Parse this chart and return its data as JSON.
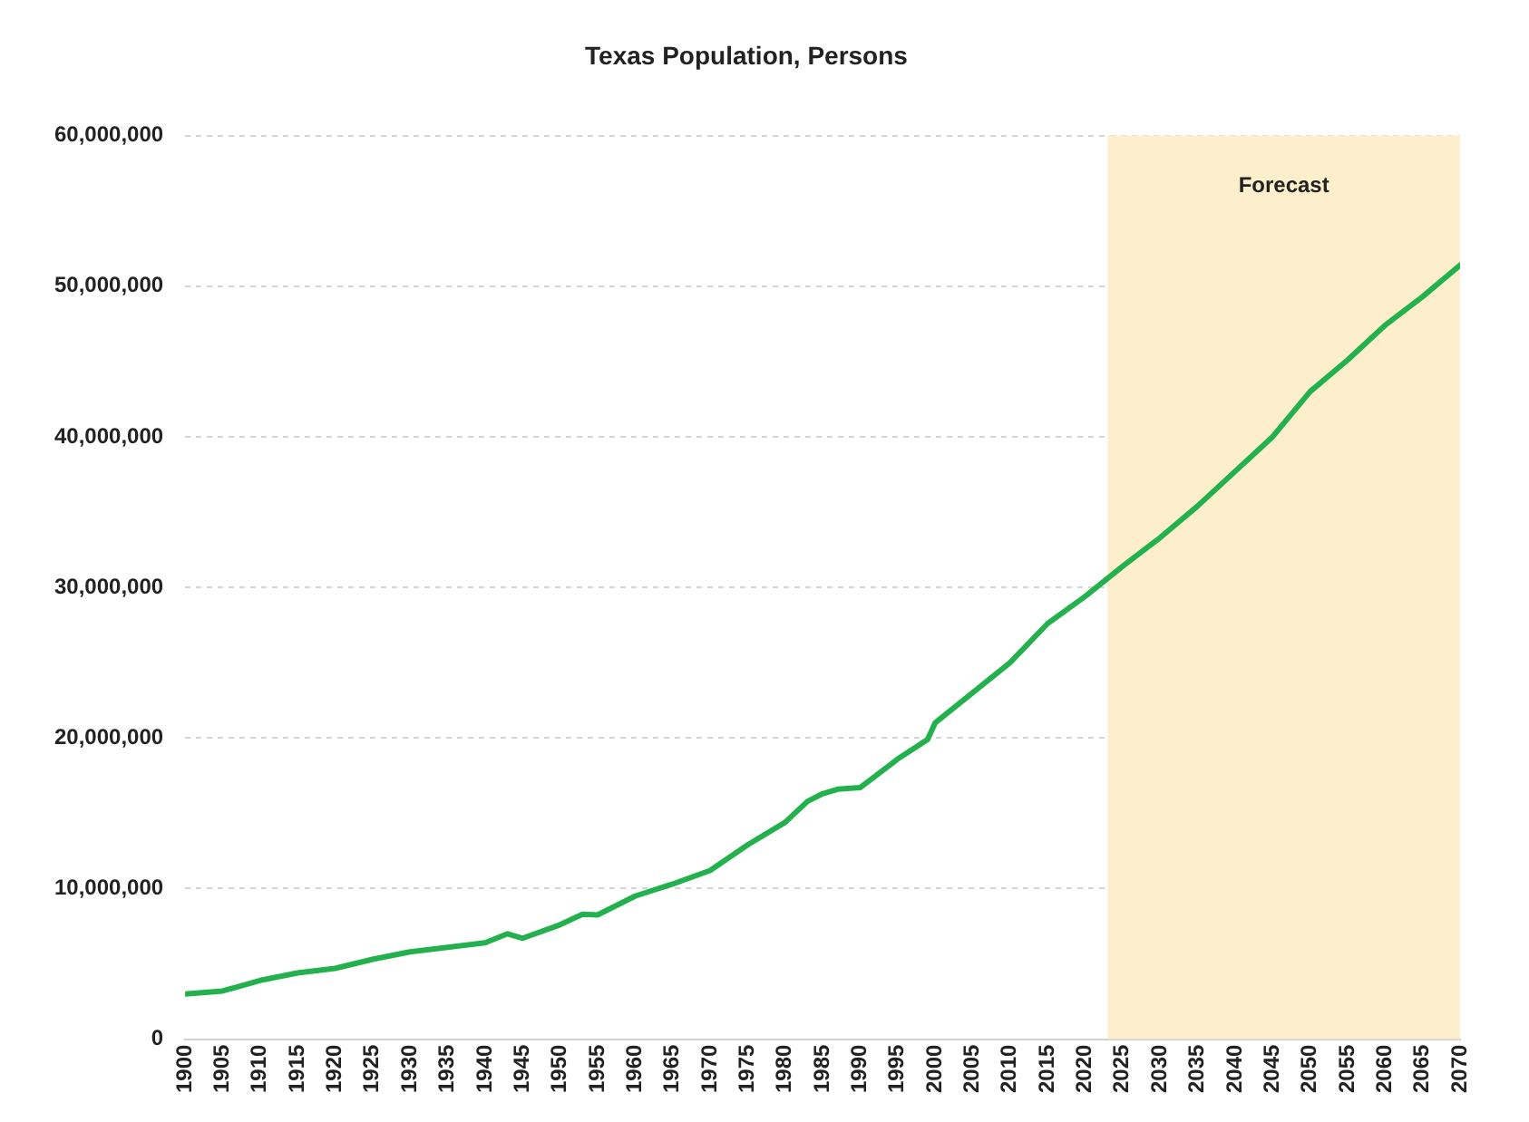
{
  "chart_data": {
    "type": "line",
    "title": "Texas Population, Persons",
    "x": [
      1900,
      1905,
      1910,
      1915,
      1920,
      1925,
      1930,
      1935,
      1940,
      1943,
      1945,
      1950,
      1953,
      1955,
      1960,
      1965,
      1970,
      1975,
      1980,
      1983,
      1985,
      1987,
      1990,
      1995,
      1999,
      2000,
      2005,
      2010,
      2015,
      2020,
      2025,
      2030,
      2035,
      2040,
      2045,
      2050,
      2055,
      2060,
      2065,
      2070
    ],
    "series": [
      {
        "color": "#22b14c",
        "values": [
          3000000,
          3200000,
          3900000,
          4400000,
          4700000,
          5300000,
          5800000,
          6100000,
          6400000,
          7000000,
          6700000,
          7600000,
          8300000,
          8250000,
          9500000,
          10300000,
          11200000,
          12900000,
          14400000,
          15800000,
          16300000,
          16600000,
          16700000,
          18600000,
          19900000,
          21000000,
          23000000,
          25000000,
          27600000,
          29400000,
          31400000,
          33300000,
          35400000,
          37700000,
          40000000,
          43000000,
          45100000,
          47400000,
          49300000,
          51400000
        ]
      }
    ],
    "xlim": [
      1900,
      2070
    ],
    "xticks": [
      1900,
      1905,
      1910,
      1915,
      1920,
      1925,
      1930,
      1935,
      1940,
      1945,
      1950,
      1955,
      1960,
      1965,
      1970,
      1975,
      1980,
      1985,
      1990,
      1995,
      2000,
      2005,
      2010,
      2015,
      2020,
      2025,
      2030,
      2035,
      2040,
      2045,
      2050,
      2055,
      2060,
      2065,
      2070
    ],
    "ylim": [
      0,
      60000000
    ],
    "yticks": [
      {
        "value": 0,
        "label": "0"
      },
      {
        "value": 10000000,
        "label": "10,000,000"
      },
      {
        "value": 20000000,
        "label": "20,000,000"
      },
      {
        "value": 30000000,
        "label": "30,000,000"
      },
      {
        "value": 40000000,
        "label": "40,000,000"
      },
      {
        "value": 50000000,
        "label": "50,000,000"
      },
      {
        "value": 60000000,
        "label": "60,000,000"
      }
    ],
    "grid": "y",
    "legend": false,
    "marker": "none",
    "line_style": "solid",
    "bands": [
      {
        "axis": "x",
        "from": 2023,
        "to": 2070,
        "label": "Forecast",
        "color": "#fdefcc"
      }
    ]
  }
}
